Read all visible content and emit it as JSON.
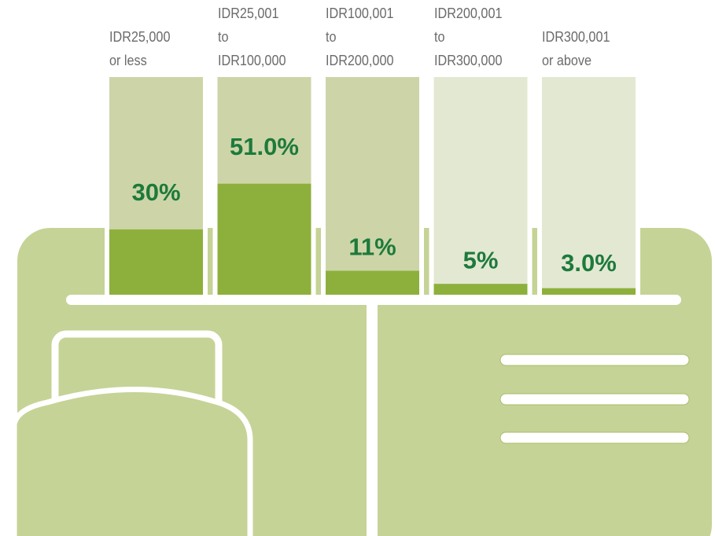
{
  "chart_data": {
    "type": "bar",
    "categories": [
      "IDR25,000\nor less",
      "IDR25,001\nto\nIDR100,000",
      "IDR100,001\nto\nIDR200,000",
      "IDR200,001\nto\nIDR300,000",
      "IDR300,001\nor above"
    ],
    "values": [
      30,
      51.0,
      11,
      5,
      3.0
    ],
    "value_labels": [
      "30%",
      "51.0%",
      "11%",
      "5%",
      "3.0%"
    ],
    "color": "#8db03c",
    "ylim": [
      0,
      100
    ]
  }
}
